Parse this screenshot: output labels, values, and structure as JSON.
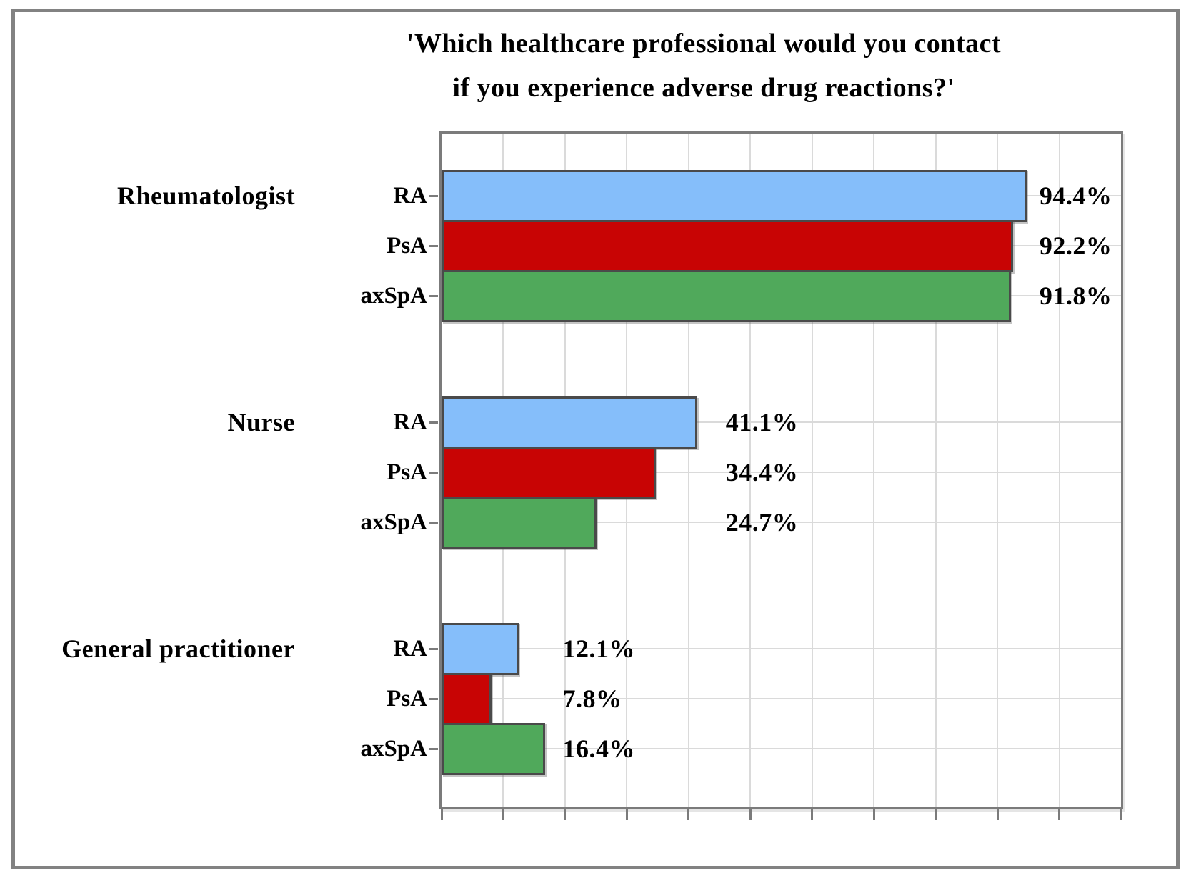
{
  "title": {
    "line1": "'Which healthcare professional would you contact",
    "line2": "if you experience adverse drug reactions?'"
  },
  "chart_data": {
    "type": "bar",
    "orientation": "horizontal",
    "title": "'Which healthcare professional would you contact if you experience adverse drug reactions?'",
    "groups": [
      "Rheumatologist",
      "Nurse",
      "General practitioner"
    ],
    "series": [
      {
        "name": "RA",
        "color": "#85befa",
        "values": [
          94.4,
          41.1,
          12.1
        ],
        "labels": [
          "94.4%",
          "41.1%",
          "12.1%"
        ]
      },
      {
        "name": "PsA",
        "color": "#c80404",
        "values": [
          92.2,
          34.4,
          7.8
        ],
        "labels": [
          "92.2%",
          "34.4%",
          "7.8%"
        ]
      },
      {
        "name": "axSpA",
        "color": "#50a95b",
        "values": [
          91.8,
          24.7,
          16.4
        ],
        "labels": [
          "91.8%",
          "24.7%",
          "16.4%"
        ]
      }
    ],
    "xlim": [
      0,
      110
    ],
    "gridline_step": 10,
    "x_tick_labels_visible": false,
    "grid": true,
    "legend_position": "none",
    "value_label_x_pct_per_group": [
      96.8,
      46.0,
      19.6
    ]
  },
  "colors": {
    "bar_ra": "#85befa",
    "bar_psa": "#c80404",
    "bar_axspa": "#50a95b",
    "bar_border": "#4a4a4a",
    "plot_border": "#7b7b7b",
    "gridline": "#dadada",
    "outer_frame": "#828282",
    "text": "#000000"
  }
}
